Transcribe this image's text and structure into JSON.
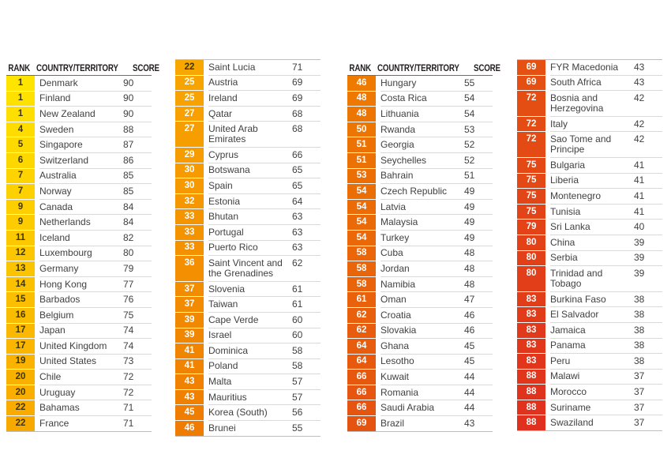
{
  "style": {
    "page_bg": "#ffffff",
    "header_text": "#231f20",
    "header_rule": "#6d6e70",
    "row_line": "#d9d9da",
    "edge_line": "#bcbec0",
    "body_text": "#414042",
    "rank_text_dark": "#3e3600",
    "rank_text_light": "#ffffff",
    "dark_text_max_rank": 22,
    "rank_gradient_stops": [
      {
        "index": 0,
        "color": "#ffe400"
      },
      {
        "index": 23,
        "color": "#f8a600"
      },
      {
        "index": 46,
        "color": "#ee7a00"
      },
      {
        "index": 69,
        "color": "#e55112"
      },
      {
        "index": 90,
        "color": "#e0301e"
      }
    ]
  },
  "chart_data": {
    "type": "table",
    "headers": {
      "rank": "RANK",
      "country": "COUNTRY/TERRITORY",
      "score": "SCORE"
    },
    "columns": [
      {
        "has_header": true,
        "rows": [
          [
            "1",
            "Denmark",
            "90"
          ],
          [
            "1",
            "Finland",
            "90"
          ],
          [
            "1",
            "New Zealand",
            "90"
          ],
          [
            "4",
            "Sweden",
            "88"
          ],
          [
            "5",
            "Singapore",
            "87"
          ],
          [
            "6",
            "Switzerland",
            "86"
          ],
          [
            "7",
            "Australia",
            "85"
          ],
          [
            "7",
            "Norway",
            "85"
          ],
          [
            "9",
            "Canada",
            "84"
          ],
          [
            "9",
            "Netherlands",
            "84"
          ],
          [
            "11",
            "Iceland",
            "82"
          ],
          [
            "12",
            "Luxembourg",
            "80"
          ],
          [
            "13",
            "Germany",
            "79"
          ],
          [
            "14",
            "Hong Kong",
            "77"
          ],
          [
            "15",
            "Barbados",
            "76"
          ],
          [
            "16",
            "Belgium",
            "75"
          ],
          [
            "17",
            "Japan",
            "74"
          ],
          [
            "17",
            "United Kingdom",
            "74"
          ],
          [
            "19",
            "United States",
            "73"
          ],
          [
            "20",
            "Chile",
            "72"
          ],
          [
            "20",
            "Uruguay",
            "72"
          ],
          [
            "22",
            "Bahamas",
            "71"
          ],
          [
            "22",
            "France",
            "71"
          ]
        ]
      },
      {
        "has_header": false,
        "rows": [
          [
            "22",
            "Saint Lucia",
            "71"
          ],
          [
            "25",
            "Austria",
            "69"
          ],
          [
            "25",
            "Ireland",
            "69"
          ],
          [
            "27",
            "Qatar",
            "68"
          ],
          [
            "27",
            "United Arab Emirates",
            "68"
          ],
          [
            "29",
            "Cyprus",
            "66"
          ],
          [
            "30",
            "Botswana",
            "65"
          ],
          [
            "30",
            "Spain",
            "65"
          ],
          [
            "32",
            "Estonia",
            "64"
          ],
          [
            "33",
            "Bhutan",
            "63"
          ],
          [
            "33",
            "Portugal",
            "63"
          ],
          [
            "33",
            "Puerto Rico",
            "63"
          ],
          [
            "36",
            "Saint Vincent and the Grenadines",
            "62"
          ],
          [
            "37",
            "Slovenia",
            "61"
          ],
          [
            "37",
            "Taiwan",
            "61"
          ],
          [
            "39",
            "Cape Verde",
            "60"
          ],
          [
            "39",
            "Israel",
            "60"
          ],
          [
            "41",
            "Dominica",
            "58"
          ],
          [
            "41",
            "Poland",
            "58"
          ],
          [
            "43",
            "Malta",
            "57"
          ],
          [
            "43",
            "Mauritius",
            "57"
          ],
          [
            "45",
            "Korea (South)",
            "56"
          ],
          [
            "46",
            "Brunei",
            "55"
          ]
        ]
      },
      {
        "has_header": true,
        "rows": [
          [
            "46",
            "Hungary",
            "55"
          ],
          [
            "48",
            "Costa Rica",
            "54"
          ],
          [
            "48",
            "Lithuania",
            "54"
          ],
          [
            "50",
            "Rwanda",
            "53"
          ],
          [
            "51",
            "Georgia",
            "52"
          ],
          [
            "51",
            "Seychelles",
            "52"
          ],
          [
            "53",
            "Bahrain",
            "51"
          ],
          [
            "54",
            "Czech Republic",
            "49"
          ],
          [
            "54",
            "Latvia",
            "49"
          ],
          [
            "54",
            "Malaysia",
            "49"
          ],
          [
            "54",
            "Turkey",
            "49"
          ],
          [
            "58",
            "Cuba",
            "48"
          ],
          [
            "58",
            "Jordan",
            "48"
          ],
          [
            "58",
            "Namibia",
            "48"
          ],
          [
            "61",
            "Oman",
            "47"
          ],
          [
            "62",
            "Croatia",
            "46"
          ],
          [
            "62",
            "Slovakia",
            "46"
          ],
          [
            "64",
            "Ghana",
            "45"
          ],
          [
            "64",
            "Lesotho",
            "45"
          ],
          [
            "66",
            "Kuwait",
            "44"
          ],
          [
            "66",
            "Romania",
            "44"
          ],
          [
            "66",
            "Saudi Arabia",
            "44"
          ],
          [
            "69",
            "Brazil",
            "43"
          ]
        ]
      },
      {
        "has_header": false,
        "rows": [
          [
            "69",
            "FYR Macedonia",
            "43"
          ],
          [
            "69",
            "South Africa",
            "43"
          ],
          [
            "72",
            "Bosnia and Herzegovina",
            "42"
          ],
          [
            "72",
            "Italy",
            "42"
          ],
          [
            "72",
            "Sao Tome and Principe",
            "42"
          ],
          [
            "75",
            "Bulgaria",
            "41"
          ],
          [
            "75",
            "Liberia",
            "41"
          ],
          [
            "75",
            "Montenegro",
            "41"
          ],
          [
            "75",
            "Tunisia",
            "41"
          ],
          [
            "79",
            "Sri Lanka",
            "40"
          ],
          [
            "80",
            "China",
            "39"
          ],
          [
            "80",
            "Serbia",
            "39"
          ],
          [
            "80",
            "Trinidad and Tobago",
            "39"
          ],
          [
            "83",
            "Burkina Faso",
            "38"
          ],
          [
            "83",
            "El Salvador",
            "38"
          ],
          [
            "83",
            "Jamaica",
            "38"
          ],
          [
            "83",
            "Panama",
            "38"
          ],
          [
            "83",
            "Peru",
            "38"
          ],
          [
            "88",
            "Malawi",
            "37"
          ],
          [
            "88",
            "Morocco",
            "37"
          ],
          [
            "88",
            "Suriname",
            "37"
          ],
          [
            "88",
            "Swaziland",
            "37"
          ]
        ]
      }
    ]
  }
}
